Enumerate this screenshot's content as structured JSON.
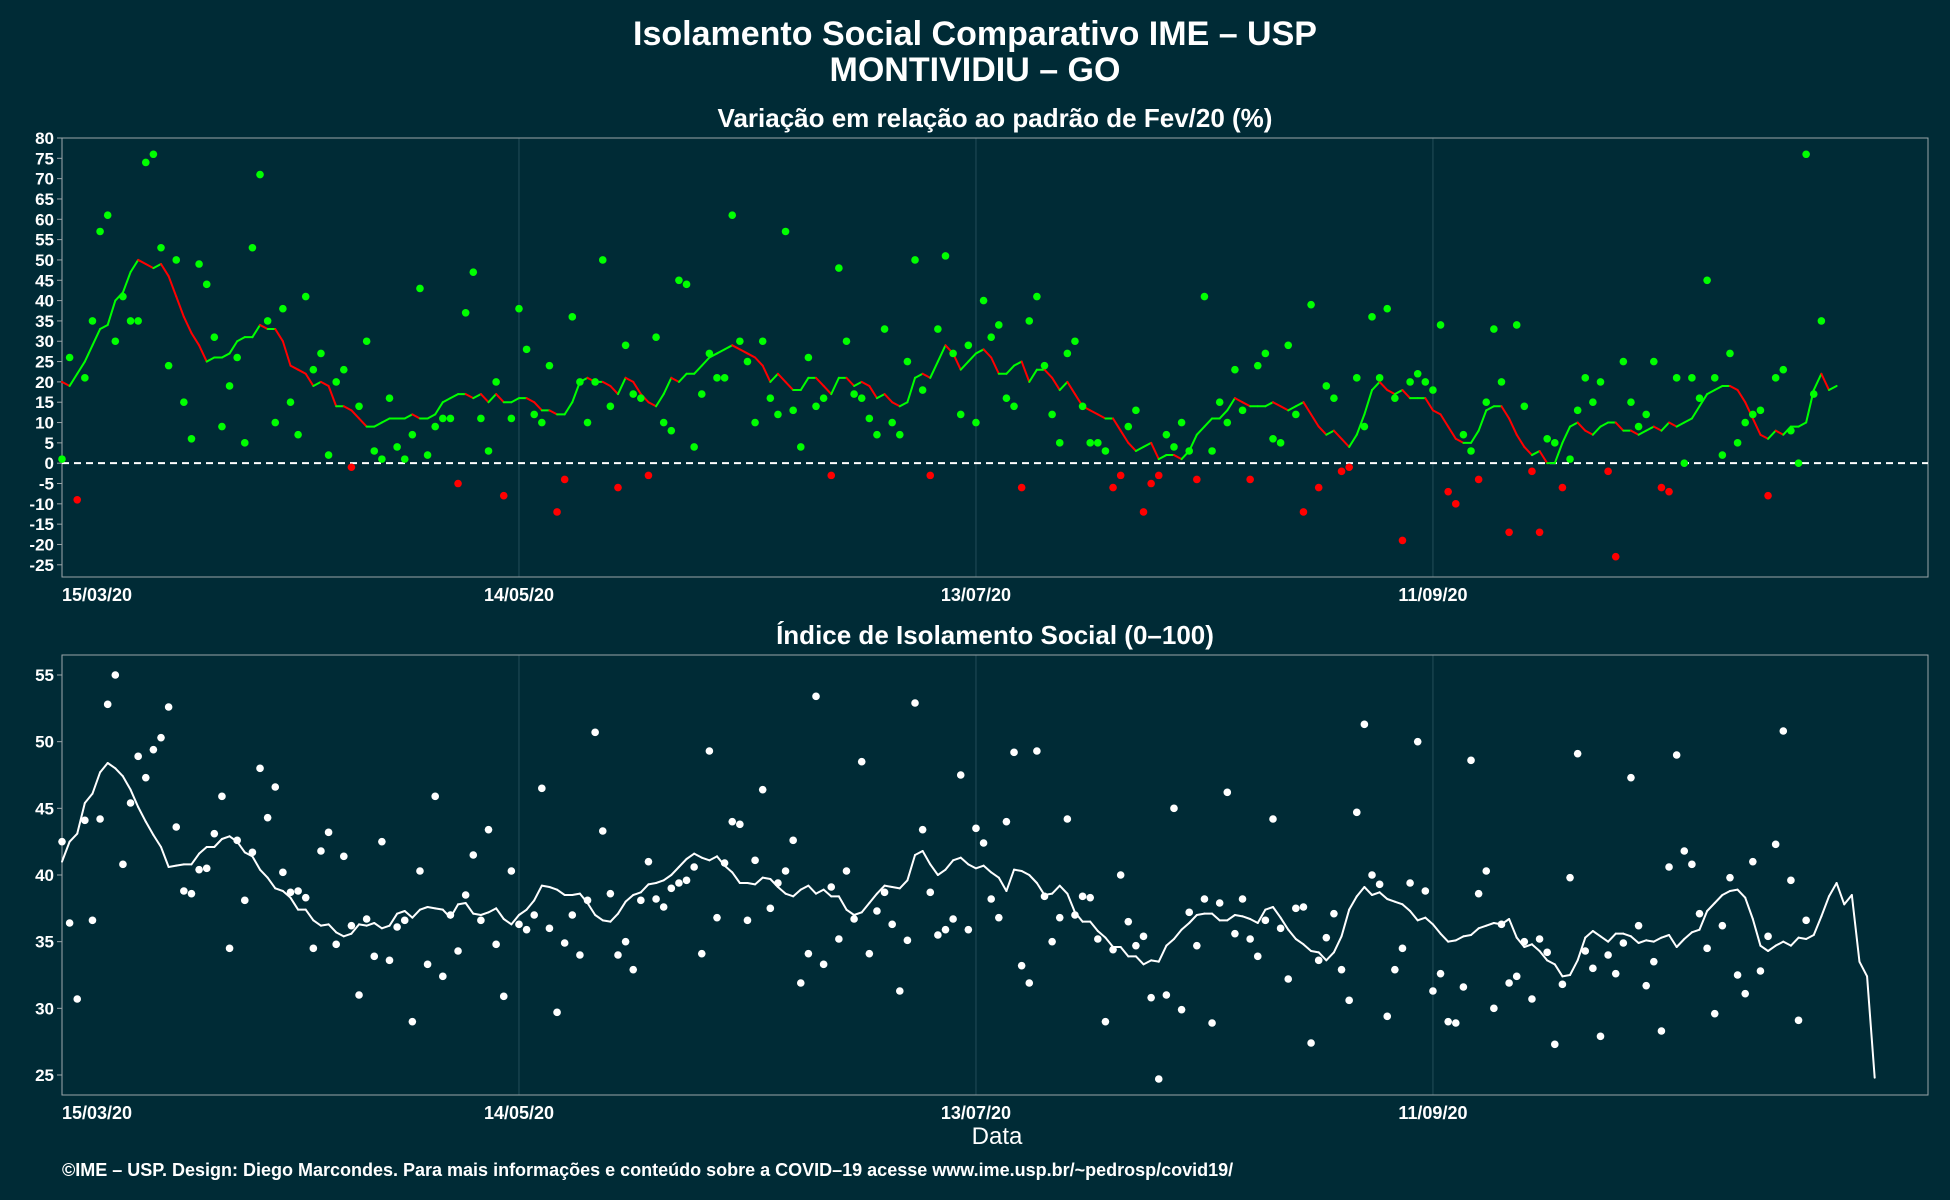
{
  "title": "Isolamento Social Comparativo IME – USP",
  "subtitle": "MONTIVIDIU – GO",
  "footer": "©IME – USP. Design: Diego Marcondes. Para mais informações e conteúdo sobre a COVID–19 acesse www.ime.usp.br/~pedrosp/covid19/",
  "colors": {
    "background": "#002b36",
    "positive": "#00ff00",
    "negative": "#ff0000",
    "index": "#ffffff"
  },
  "chart_data": [
    {
      "type": "scatter",
      "title": "Variação em relação ao padrão de Fev/20 (%)",
      "xlabel": "",
      "ylabel": "",
      "x_start": "15/03/20",
      "x_end": "15/11/20",
      "x_ticks": [
        "15/03/20",
        "14/05/20",
        "13/07/20",
        "11/09/20"
      ],
      "y_ticks": [
        80,
        75,
        70,
        65,
        60,
        55,
        50,
        45,
        40,
        35,
        30,
        25,
        20,
        15,
        10,
        5,
        0,
        -5,
        -10,
        -15,
        -20,
        -25
      ],
      "ylim": [
        -28,
        80
      ],
      "reference_line": 0,
      "grid": true,
      "series": [
        {
          "values": [
            1,
            26,
            -9,
            21,
            35,
            57,
            61,
            30,
            41,
            35,
            35,
            74,
            76,
            53,
            24,
            50,
            15,
            6,
            49,
            44,
            31,
            9,
            19,
            26,
            5,
            53,
            71,
            35,
            10,
            38,
            15,
            7,
            41,
            23,
            27,
            2,
            20,
            23,
            -1,
            14,
            30,
            3,
            1,
            16,
            4,
            1,
            7,
            43,
            2,
            9,
            11,
            11,
            -5,
            37,
            47,
            11,
            3,
            20,
            -8,
            11,
            38,
            28,
            12,
            10,
            24,
            -12,
            -4,
            36,
            20,
            10,
            20,
            50,
            14,
            -6,
            29,
            17,
            16,
            -3,
            31,
            10,
            8,
            45,
            44,
            4,
            17,
            27,
            21,
            21,
            61,
            30,
            25,
            10,
            30,
            16,
            12,
            57,
            13,
            4,
            26,
            14,
            16,
            -3,
            48,
            30,
            17,
            16,
            11,
            7,
            33,
            10,
            7,
            25,
            50,
            18,
            -3,
            33,
            51,
            27,
            12,
            29,
            10,
            40,
            31,
            34,
            16,
            14,
            -6,
            35,
            41,
            24,
            12,
            5,
            27,
            30,
            14,
            5,
            5,
            3,
            -6,
            -3,
            9,
            13,
            -12,
            -5,
            -3,
            7,
            4,
            10,
            3,
            -4,
            41,
            3,
            15,
            10,
            23,
            13,
            -4,
            24,
            27,
            6,
            5,
            29,
            12,
            -12,
            39,
            -6,
            19,
            16,
            -2,
            -1,
            21,
            9,
            36,
            21,
            38,
            16,
            -19,
            20,
            22,
            20,
            18,
            34,
            -7,
            -10,
            7,
            3,
            -4,
            15,
            33,
            20,
            -17,
            34,
            14,
            -2,
            -17,
            6,
            5,
            -6,
            1,
            13,
            21,
            15,
            20,
            -2,
            -23,
            25,
            15,
            9,
            12,
            25,
            -6,
            -7,
            21,
            0,
            21,
            16,
            45,
            21,
            2,
            27,
            5,
            10,
            12,
            13,
            -8,
            21,
            23,
            8,
            0,
            76,
            17,
            35
          ]
        },
        {
          "values": [
            20,
            19,
            22,
            25,
            29,
            33,
            34,
            40,
            42,
            47,
            50,
            49,
            48,
            49,
            46,
            41,
            36,
            32,
            29,
            25,
            26,
            26,
            27,
            30,
            31,
            31,
            34,
            33,
            33,
            30,
            24,
            23,
            22,
            19,
            20,
            19,
            14,
            14,
            13,
            11,
            9,
            9,
            10,
            11,
            11,
            11,
            12,
            11,
            11,
            12,
            15,
            16,
            17,
            17,
            16,
            17,
            15,
            17,
            15,
            15,
            16,
            16,
            15,
            13,
            13,
            12,
            12,
            15,
            20,
            21,
            20,
            20,
            19,
            17,
            21,
            20,
            17,
            15,
            14,
            17,
            21,
            20,
            22,
            22,
            24,
            26,
            27,
            28,
            29,
            28,
            27,
            26,
            24,
            20,
            22,
            20,
            18,
            18,
            21,
            21,
            19,
            17,
            21,
            21,
            19,
            20,
            19,
            16,
            17,
            15,
            14,
            15,
            21,
            22,
            21,
            25,
            29,
            27,
            23,
            25,
            27,
            28,
            26,
            22,
            22,
            24,
            25,
            20,
            23,
            23,
            21,
            18,
            20,
            17,
            14,
            13,
            12,
            11,
            11,
            8,
            5,
            3,
            4,
            5,
            1,
            2,
            2,
            1,
            3,
            7,
            9,
            11,
            11,
            13,
            16,
            15,
            14,
            14,
            14,
            15,
            14,
            13,
            14,
            15,
            12,
            9,
            7,
            8,
            6,
            4,
            7,
            12,
            18,
            20,
            18,
            17,
            18,
            16,
            16,
            16,
            13,
            12,
            9,
            6,
            5,
            5,
            8,
            13,
            14,
            14,
            11,
            7,
            4,
            2,
            3,
            0,
            0,
            5,
            9,
            10,
            8,
            7,
            9,
            10,
            10,
            8,
            8,
            7,
            8,
            9,
            8,
            10,
            9,
            10,
            11,
            14,
            17,
            18,
            19,
            19,
            18,
            15,
            11,
            7,
            6,
            8,
            7,
            9,
            9,
            10,
            18,
            22,
            18,
            19
          ]
        }
      ]
    },
    {
      "type": "scatter",
      "title": "Índice de Isolamento Social (0–100)",
      "xlabel": "Data",
      "ylabel": "",
      "x_start": "15/03/20",
      "x_end": "15/11/20",
      "x_ticks": [
        "15/03/20",
        "14/05/20",
        "13/07/20",
        "11/09/20"
      ],
      "y_ticks": [
        55,
        50,
        45,
        40,
        35,
        30,
        25
      ],
      "ylim": [
        23.5,
        56.5
      ],
      "grid": true,
      "series": [
        {
          "values": [
            42.5,
            36.4,
            30.7,
            44.1,
            36.6,
            44.2,
            52.8,
            55.0,
            40.8,
            45.4,
            48.9,
            47.3,
            49.4,
            50.3,
            52.6,
            43.6,
            38.8,
            38.6,
            40.4,
            40.5,
            43.1,
            45.9,
            34.5,
            42.6,
            38.1,
            41.7,
            48.0,
            44.3,
            46.6,
            40.2,
            38.7,
            38.8,
            38.3,
            34.5,
            41.8,
            43.2,
            34.8,
            41.4,
            36.2,
            31.0,
            36.7,
            33.9,
            42.5,
            33.6,
            36.1,
            36.6,
            29.0,
            40.3,
            33.3,
            45.9,
            32.4,
            37.0,
            34.3,
            38.5,
            41.5,
            36.6,
            43.4,
            34.8,
            30.9,
            40.3,
            36.3,
            35.9,
            37.0,
            46.5,
            36.0,
            29.7,
            34.9,
            37.0,
            34.0,
            38.1,
            50.7,
            43.3,
            38.6,
            34.0,
            35.0,
            32.9,
            38.1,
            41.0,
            38.2,
            37.6,
            39.0,
            39.4,
            39.6,
            40.6,
            34.1,
            49.3,
            36.8,
            40.9,
            44.0,
            43.8,
            36.6,
            41.1,
            46.4,
            37.5,
            39.4,
            40.3,
            42.6,
            31.9,
            34.1,
            53.4,
            33.3,
            39.1,
            35.2,
            40.3,
            36.7,
            48.5,
            34.1,
            37.3,
            38.7,
            36.3,
            31.3,
            35.1,
            52.9,
            43.4,
            38.7,
            35.5,
            35.9,
            36.7,
            47.5,
            35.9,
            43.5,
            42.4,
            38.2,
            36.8,
            44.0,
            49.2,
            33.2,
            31.9,
            49.3,
            38.4,
            35.0,
            36.8,
            44.2,
            37.0,
            38.4,
            38.3,
            35.2,
            29.0,
            34.4,
            40.0,
            36.5,
            34.7,
            35.4,
            30.8,
            24.7,
            31.0,
            45.0,
            29.9,
            37.2,
            34.7,
            38.2,
            28.9,
            37.9,
            46.2,
            35.6,
            38.2,
            35.2,
            33.9,
            36.6,
            44.2,
            36.0,
            32.2,
            37.5,
            37.6,
            27.4,
            33.6,
            35.3,
            37.1,
            32.9,
            30.6,
            44.7,
            51.3,
            40.0,
            39.3,
            29.4,
            32.9,
            34.5,
            39.4,
            50.0,
            38.8,
            31.3,
            32.6,
            29.0,
            28.9,
            31.6,
            48.6,
            38.6,
            40.3,
            30.0,
            36.3,
            31.9,
            32.4,
            35.0,
            30.7,
            35.2,
            34.2,
            27.3,
            31.8,
            39.8,
            49.1,
            34.3,
            33.0,
            27.9,
            34.0,
            32.6,
            34.9,
            47.3,
            36.2,
            31.7,
            33.5,
            28.3,
            40.6,
            49.0,
            41.8,
            40.8,
            37.1,
            34.5,
            29.6,
            36.2,
            39.8,
            32.5,
            31.1,
            41.0,
            32.8,
            35.4,
            42.3,
            50.8,
            39.6,
            29.1,
            36.6
          ]
        },
        {
          "values": [
            41.0,
            42.5,
            43.1,
            45.4,
            46.1,
            47.7,
            48.4,
            48.0,
            47.4,
            46.4,
            45.1,
            44.0,
            43.0,
            42.1,
            40.6,
            40.7,
            40.8,
            40.8,
            41.6,
            42.1,
            42.1,
            42.7,
            42.9,
            42.5,
            41.7,
            41.4,
            40.4,
            39.8,
            39.0,
            38.8,
            38.3,
            37.4,
            37.4,
            36.6,
            36.2,
            36.3,
            35.7,
            35.4,
            35.6,
            36.3,
            36.2,
            36.4,
            36.0,
            36.2,
            37.1,
            37.3,
            36.8,
            37.4,
            37.6,
            37.5,
            37.4,
            36.8,
            37.8,
            37.9,
            37.1,
            37.0,
            37.2,
            37.5,
            36.7,
            36.3,
            37.0,
            37.4,
            38.1,
            39.2,
            39.1,
            38.9,
            38.5,
            38.5,
            38.6,
            37.9,
            37.0,
            36.6,
            36.5,
            37.1,
            38.0,
            38.5,
            38.7,
            39.3,
            39.4,
            39.6,
            40.0,
            40.6,
            41.2,
            41.6,
            41.3,
            41.1,
            41.4,
            40.7,
            40.2,
            39.4,
            39.4,
            39.3,
            39.8,
            39.7,
            39.1,
            38.6,
            38.4,
            38.9,
            39.2,
            38.6,
            38.9,
            38.4,
            38.4,
            37.4,
            37.0,
            37.2,
            37.9,
            38.6,
            39.2,
            39.1,
            39.0,
            39.6,
            41.5,
            41.8,
            40.8,
            40.0,
            40.4,
            41.1,
            41.3,
            40.8,
            40.5,
            40.7,
            40.2,
            39.8,
            38.8,
            40.4,
            40.3,
            40.0,
            39.4,
            38.5,
            38.6,
            39.2,
            38.6,
            37.2,
            36.5,
            36.5,
            35.8,
            35.3,
            34.6,
            34.6,
            33.9,
            33.9,
            33.3,
            33.6,
            33.5,
            34.7,
            35.2,
            35.9,
            36.4,
            37.0,
            37.1,
            37.1,
            36.6,
            36.6,
            37.0,
            36.9,
            36.7,
            36.4,
            37.4,
            37.6,
            36.8,
            35.9,
            35.2,
            34.8,
            34.3,
            34.2,
            33.6,
            34.2,
            35.4,
            37.4,
            38.4,
            39.1,
            38.5,
            38.7,
            38.2,
            38.0,
            37.8,
            37.3,
            36.6,
            36.8,
            36.3,
            35.6,
            35.0,
            35.1,
            35.4,
            35.5,
            36.0,
            36.2,
            36.4,
            36.3,
            36.7,
            35.3,
            34.6,
            34.8,
            34.3,
            33.6,
            33.3,
            32.4,
            32.5,
            33.6,
            35.3,
            35.8,
            35.4,
            35.0,
            35.6,
            35.6,
            35.4,
            34.9,
            35.1,
            35.0,
            35.3,
            35.5,
            34.6,
            35.2,
            35.7,
            35.9,
            37.3,
            37.9,
            38.5,
            38.8,
            38.9,
            38.3,
            36.7,
            34.7,
            34.3,
            34.7,
            35.0,
            34.7,
            35.3,
            35.2,
            35.5,
            36.9,
            38.4,
            39.4,
            37.8,
            38.5,
            33.5,
            32.4,
            24.8
          ]
        }
      ]
    }
  ]
}
